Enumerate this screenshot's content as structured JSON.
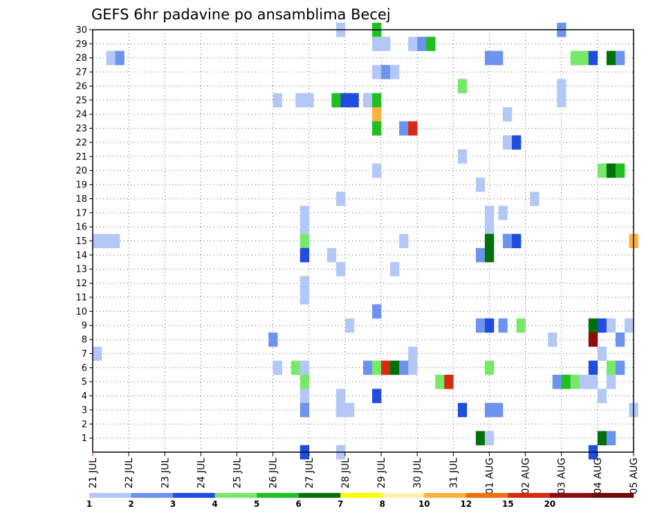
{
  "chart_data": {
    "type": "heatmap",
    "title": "GEFS 6hr padavine po ansamblima Becej",
    "x_tick_labels": [
      "21 JUL",
      "22 JUL",
      "23 JUL",
      "24 JUL",
      "25 JUL",
      "26 JUL",
      "27 JUL",
      "28 JUL",
      "29 JUL",
      "30 JUL",
      "31 JUL",
      "01 AUG",
      "02 AUG",
      "03 AUG",
      "04 AUG",
      "05 AUG"
    ],
    "y_tick_labels": [
      "1",
      "2",
      "3",
      "4",
      "5",
      "6",
      "7",
      "8",
      "9",
      "10",
      "11",
      "12",
      "13",
      "14",
      "15",
      "16",
      "17",
      "18",
      "19",
      "20",
      "21",
      "22",
      "23",
      "24",
      "25",
      "26",
      "27",
      "28",
      "29",
      "30"
    ],
    "x_range_steps": [
      0,
      60
    ],
    "y_range_members": [
      0,
      30
    ],
    "grid": true,
    "legend_placement": "bottom",
    "legend": {
      "labels": [
        "1",
        "2",
        "3",
        "4",
        "5",
        "6",
        "7",
        "8",
        "10",
        "12",
        "15",
        "20"
      ],
      "colors": [
        "#b4c8f5",
        "#6e93ee",
        "#1f4de0",
        "#78e86a",
        "#20c020",
        "#00700a",
        "#ffff00",
        "#fff0b0",
        "#ffb040",
        "#f07010",
        "#d82a10",
        "#8e0e10",
        "#700808"
      ]
    },
    "cells": [
      {
        "m": 30,
        "s": 27.5,
        "c": 0
      },
      {
        "m": 30,
        "s": 31.5,
        "c": 4
      },
      {
        "m": 30,
        "s": 52,
        "c": 1
      },
      {
        "m": 29,
        "s": 31.5,
        "c": 0
      },
      {
        "m": 29,
        "s": 32.5,
        "c": 0
      },
      {
        "m": 29,
        "s": 35.5,
        "c": 0
      },
      {
        "m": 29,
        "s": 36.5,
        "c": 1
      },
      {
        "m": 29,
        "s": 37.5,
        "c": 4
      },
      {
        "m": 28,
        "s": 2,
        "c": 0
      },
      {
        "m": 28,
        "s": 3,
        "c": 1
      },
      {
        "m": 28,
        "s": 44,
        "c": 1
      },
      {
        "m": 28,
        "s": 45,
        "c": 1
      },
      {
        "m": 28,
        "s": 53.5,
        "c": 3
      },
      {
        "m": 28,
        "s": 54.5,
        "c": 3
      },
      {
        "m": 28,
        "s": 55.5,
        "c": 2
      },
      {
        "m": 28,
        "s": 57.5,
        "c": 5
      },
      {
        "m": 28,
        "s": 58.5,
        "c": 1
      },
      {
        "m": 27,
        "s": 31.5,
        "c": 0
      },
      {
        "m": 27,
        "s": 32.5,
        "c": 1
      },
      {
        "m": 27,
        "s": 33.5,
        "c": 0
      },
      {
        "m": 26,
        "s": 41,
        "c": 3
      },
      {
        "m": 26,
        "s": 52,
        "c": 0
      },
      {
        "m": 25,
        "s": 20.5,
        "c": 0
      },
      {
        "m": 25,
        "s": 23,
        "c": 0
      },
      {
        "m": 25,
        "s": 24,
        "c": 0
      },
      {
        "m": 25,
        "s": 27,
        "c": 4
      },
      {
        "m": 25,
        "s": 28,
        "c": 2
      },
      {
        "m": 25,
        "s": 29,
        "c": 2
      },
      {
        "m": 25,
        "s": 30.5,
        "c": 0
      },
      {
        "m": 25,
        "s": 31.5,
        "c": 4
      },
      {
        "m": 25,
        "s": 52,
        "c": 0
      },
      {
        "m": 24,
        "s": 31.5,
        "c": 8
      },
      {
        "m": 24,
        "s": 46,
        "c": 0
      },
      {
        "m": 23,
        "s": 31.5,
        "c": 4
      },
      {
        "m": 23,
        "s": 34.5,
        "c": 1
      },
      {
        "m": 23,
        "s": 35.5,
        "c": 10
      },
      {
        "m": 22,
        "s": 46,
        "c": 0
      },
      {
        "m": 22,
        "s": 47,
        "c": 2
      },
      {
        "m": 21,
        "s": 41,
        "c": 0
      },
      {
        "m": 20,
        "s": 31.5,
        "c": 0
      },
      {
        "m": 20,
        "s": 56.5,
        "c": 3
      },
      {
        "m": 20,
        "s": 57.5,
        "c": 5
      },
      {
        "m": 20,
        "s": 58.5,
        "c": 4
      },
      {
        "m": 19,
        "s": 43,
        "c": 0
      },
      {
        "m": 18,
        "s": 27.5,
        "c": 0
      },
      {
        "m": 18,
        "s": 49,
        "c": 0
      },
      {
        "m": 17,
        "s": 23.5,
        "c": 0
      },
      {
        "m": 17,
        "s": 44,
        "c": 0
      },
      {
        "m": 17,
        "s": 45.5,
        "c": 0
      },
      {
        "m": 16,
        "s": 23.5,
        "c": 0
      },
      {
        "m": 16,
        "s": 44,
        "c": 0
      },
      {
        "m": 15,
        "s": 0.5,
        "c": 0
      },
      {
        "m": 15,
        "s": 1.5,
        "c": 0
      },
      {
        "m": 15,
        "s": 2.5,
        "c": 0
      },
      {
        "m": 15,
        "s": 23.5,
        "c": 3
      },
      {
        "m": 15,
        "s": 34.5,
        "c": 0
      },
      {
        "m": 15,
        "s": 44,
        "c": 5
      },
      {
        "m": 15,
        "s": 46,
        "c": 1
      },
      {
        "m": 15,
        "s": 47,
        "c": 2
      },
      {
        "m": 15,
        "s": 60,
        "c": 8
      },
      {
        "m": 14,
        "s": 23.5,
        "c": 2
      },
      {
        "m": 14,
        "s": 26.5,
        "c": 0
      },
      {
        "m": 14,
        "s": 43,
        "c": 1
      },
      {
        "m": 14,
        "s": 44,
        "c": 5
      },
      {
        "m": 13,
        "s": 27.5,
        "c": 0
      },
      {
        "m": 13,
        "s": 33.5,
        "c": 0
      },
      {
        "m": 12,
        "s": 23.5,
        "c": 0
      },
      {
        "m": 11,
        "s": 23.5,
        "c": 0
      },
      {
        "m": 10,
        "s": 31.5,
        "c": 1
      },
      {
        "m": 9,
        "s": 28.5,
        "c": 0
      },
      {
        "m": 9,
        "s": 43,
        "c": 1
      },
      {
        "m": 9,
        "s": 44,
        "c": 2
      },
      {
        "m": 9,
        "s": 45.5,
        "c": 1
      },
      {
        "m": 9,
        "s": 47.5,
        "c": 3
      },
      {
        "m": 9,
        "s": 55.5,
        "c": 5
      },
      {
        "m": 9,
        "s": 56.5,
        "c": 2
      },
      {
        "m": 9,
        "s": 57.5,
        "c": 0
      },
      {
        "m": 9,
        "s": 59.5,
        "c": 0
      },
      {
        "m": 8,
        "s": 20,
        "c": 1
      },
      {
        "m": 8,
        "s": 51,
        "c": 0
      },
      {
        "m": 8,
        "s": 55.5,
        "c": 11
      },
      {
        "m": 8,
        "s": 58.5,
        "c": 1
      },
      {
        "m": 7,
        "s": 0.5,
        "c": 0
      },
      {
        "m": 7,
        "s": 35.5,
        "c": 0
      },
      {
        "m": 7,
        "s": 56.5,
        "c": 0
      },
      {
        "m": 6,
        "s": 20.5,
        "c": 0
      },
      {
        "m": 6,
        "s": 22.5,
        "c": 3
      },
      {
        "m": 6,
        "s": 23.5,
        "c": 0
      },
      {
        "m": 6,
        "s": 30.5,
        "c": 1
      },
      {
        "m": 6,
        "s": 31.5,
        "c": 3
      },
      {
        "m": 6,
        "s": 32.5,
        "c": 10
      },
      {
        "m": 6,
        "s": 33.5,
        "c": 5
      },
      {
        "m": 6,
        "s": 34.5,
        "c": 1
      },
      {
        "m": 6,
        "s": 35.5,
        "c": 0
      },
      {
        "m": 6,
        "s": 44,
        "c": 3
      },
      {
        "m": 6,
        "s": 55.5,
        "c": 2
      },
      {
        "m": 6,
        "s": 57.5,
        "c": 3
      },
      {
        "m": 6,
        "s": 58.5,
        "c": 1
      },
      {
        "m": 5,
        "s": 23.5,
        "c": 3
      },
      {
        "m": 5,
        "s": 38.5,
        "c": 3
      },
      {
        "m": 5,
        "s": 39.5,
        "c": 10
      },
      {
        "m": 5,
        "s": 51.5,
        "c": 1
      },
      {
        "m": 5,
        "s": 52.5,
        "c": 4
      },
      {
        "m": 5,
        "s": 53.5,
        "c": 3
      },
      {
        "m": 5,
        "s": 54.5,
        "c": 0
      },
      {
        "m": 5,
        "s": 55.5,
        "c": 0
      },
      {
        "m": 5,
        "s": 57.5,
        "c": 0
      },
      {
        "m": 4,
        "s": 23.5,
        "c": 0
      },
      {
        "m": 4,
        "s": 27.5,
        "c": 0
      },
      {
        "m": 4,
        "s": 31.5,
        "c": 2
      },
      {
        "m": 4,
        "s": 56.5,
        "c": 0
      },
      {
        "m": 3,
        "s": 23.5,
        "c": 1
      },
      {
        "m": 3,
        "s": 27.5,
        "c": 0
      },
      {
        "m": 3,
        "s": 28.5,
        "c": 0
      },
      {
        "m": 3,
        "s": 41,
        "c": 2
      },
      {
        "m": 3,
        "s": 44,
        "c": 1
      },
      {
        "m": 3,
        "s": 45,
        "c": 1
      },
      {
        "m": 3,
        "s": 60,
        "c": 0
      },
      {
        "m": 1,
        "s": 43,
        "c": 5
      },
      {
        "m": 1,
        "s": 44,
        "c": 0
      },
      {
        "m": 1,
        "s": 56.5,
        "c": 5
      },
      {
        "m": 1,
        "s": 57.5,
        "c": 1
      },
      {
        "m": 0,
        "s": 23.5,
        "c": 2
      },
      {
        "m": 0,
        "s": 27.5,
        "c": 0
      },
      {
        "m": 0,
        "s": 55.5,
        "c": 2
      }
    ]
  }
}
